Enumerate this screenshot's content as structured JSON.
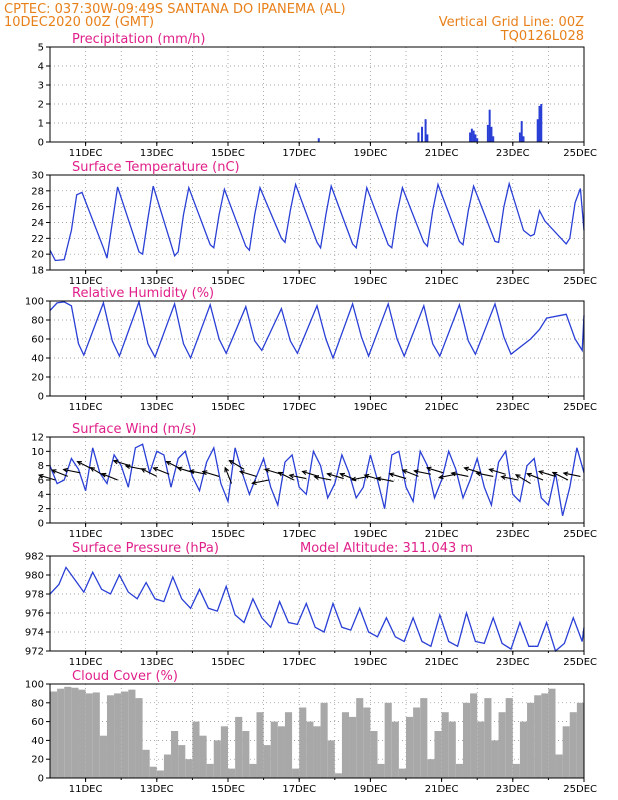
{
  "header": {
    "line1_left": "CPTEC:  037:30W-09:49S   SANTANA DO IPANEMA (AL)",
    "line2_left": "10DEC2020 00Z (GMT)",
    "line2_right": "Vertical Grid Line: 00Z",
    "line3_right": "TQ0126L028"
  },
  "colors": {
    "header": "#e8801a",
    "title": "#e0208a",
    "line": "#2a3fd6",
    "cloud": "#a8a8a8"
  },
  "chart_data": [
    {
      "type": "bar",
      "title": "Precipitation (mm/h)",
      "x_range": [
        10,
        25
      ],
      "ylim": [
        0,
        5
      ],
      "yticks": [
        0,
        1,
        2,
        3,
        4,
        5
      ],
      "xticks": [
        "11DEC",
        "13DEC",
        "15DEC",
        "17DEC",
        "19DEC",
        "21DEC",
        "23DEC",
        "25DEC"
      ],
      "x": [
        17.55,
        20.35,
        20.45,
        20.55,
        20.6,
        21.8,
        21.85,
        21.9,
        21.95,
        22.0,
        22.3,
        22.35,
        22.4,
        22.45,
        23.2,
        23.25,
        23.3,
        23.7,
        23.75,
        23.8
      ],
      "values": [
        0.2,
        0.5,
        0.8,
        1.2,
        0.4,
        0.5,
        0.7,
        0.6,
        0.4,
        0.2,
        0.9,
        1.7,
        0.8,
        0.3,
        0.5,
        1.1,
        0.3,
        1.2,
        1.9,
        2.0
      ]
    },
    {
      "type": "line",
      "title": "Surface Temperature (nC)",
      "x_range": [
        10,
        25
      ],
      "ylim": [
        18,
        30
      ],
      "yticks": [
        18,
        20,
        22,
        24,
        26,
        28,
        30
      ],
      "xticks": [
        "11DEC",
        "13DEC",
        "15DEC",
        "17DEC",
        "19DEC",
        "21DEC",
        "23DEC",
        "25DEC"
      ],
      "x": [
        10.0,
        10.15,
        10.4,
        10.6,
        10.75,
        10.9,
        11.5,
        11.6,
        11.75,
        11.9,
        12.5,
        12.6,
        12.75,
        12.9,
        13.5,
        13.6,
        13.75,
        13.9,
        14.5,
        14.6,
        14.75,
        14.9,
        15.5,
        15.6,
        15.75,
        15.9,
        16.5,
        16.6,
        16.75,
        16.9,
        17.5,
        17.6,
        17.75,
        17.9,
        18.5,
        18.6,
        18.75,
        18.9,
        19.5,
        19.6,
        19.75,
        19.9,
        20.5,
        20.6,
        20.75,
        20.9,
        21.5,
        21.6,
        21.75,
        21.9,
        22.5,
        22.6,
        22.75,
        22.9,
        23.3,
        23.5,
        23.6,
        23.75,
        23.9,
        24.5,
        24.6,
        24.75,
        24.9,
        25.0
      ],
      "values": [
        20.5,
        19.2,
        19.3,
        23.0,
        27.5,
        27.8,
        20.8,
        19.5,
        24.0,
        28.5,
        20.3,
        20.0,
        24.5,
        28.6,
        19.8,
        20.3,
        25.0,
        28.4,
        21.2,
        20.8,
        25.0,
        28.2,
        21.0,
        20.5,
        25.0,
        28.4,
        22.0,
        21.5,
        25.5,
        28.8,
        21.5,
        20.8,
        25.0,
        28.6,
        21.3,
        20.8,
        24.5,
        28.4,
        21.2,
        20.8,
        25.2,
        28.4,
        21.5,
        21.0,
        25.5,
        28.8,
        21.6,
        21.2,
        25.5,
        28.6,
        21.6,
        21.5,
        26.0,
        28.9,
        23.0,
        22.3,
        22.5,
        25.5,
        24.2,
        21.3,
        22.0,
        26.5,
        28.3,
        23.0
      ]
    },
    {
      "type": "line",
      "title": "Relative Humidity (%)",
      "x_range": [
        10,
        25
      ],
      "ylim": [
        0,
        100
      ],
      "yticks": [
        0,
        20,
        40,
        60,
        80,
        100
      ],
      "xticks": [
        "11DEC",
        "13DEC",
        "15DEC",
        "17DEC",
        "19DEC",
        "21DEC",
        "23DEC",
        "25DEC"
      ],
      "x": [
        10.0,
        10.2,
        10.4,
        10.6,
        10.8,
        10.95,
        11.5,
        11.75,
        11.95,
        12.5,
        12.75,
        12.95,
        13.5,
        13.75,
        13.95,
        14.5,
        14.75,
        14.95,
        15.5,
        15.75,
        15.95,
        16.5,
        16.75,
        16.95,
        17.5,
        17.75,
        17.95,
        18.5,
        18.75,
        18.95,
        19.5,
        19.75,
        19.95,
        20.5,
        20.75,
        20.95,
        21.5,
        21.75,
        21.95,
        22.5,
        22.75,
        22.95,
        23.5,
        23.75,
        23.95,
        24.5,
        24.75,
        24.95,
        25.0
      ],
      "values": [
        90,
        98,
        99,
        95,
        55,
        43,
        98,
        58,
        42,
        99,
        55,
        41,
        97,
        55,
        40,
        96,
        60,
        45,
        94,
        58,
        48,
        92,
        58,
        45,
        95,
        60,
        40,
        97,
        62,
        42,
        97,
        60,
        42,
        95,
        55,
        42,
        96,
        58,
        44,
        97,
        62,
        44,
        60,
        70,
        82,
        86,
        60,
        48,
        85
      ]
    },
    {
      "type": "line",
      "title": "Surface Wind (m/s)",
      "x_range": [
        10,
        25
      ],
      "ylim": [
        0,
        12
      ],
      "yticks": [
        0,
        2,
        4,
        6,
        8,
        10,
        12
      ],
      "xticks": [
        "11DEC",
        "13DEC",
        "15DEC",
        "17DEC",
        "19DEC",
        "21DEC",
        "23DEC",
        "25DEC"
      ],
      "x": [
        10.0,
        10.2,
        10.4,
        10.6,
        10.8,
        11.0,
        11.2,
        11.4,
        11.6,
        11.8,
        12.0,
        12.2,
        12.4,
        12.6,
        12.8,
        13.0,
        13.2,
        13.4,
        13.6,
        13.8,
        14.0,
        14.2,
        14.4,
        14.6,
        14.8,
        15.0,
        15.2,
        15.4,
        15.6,
        15.8,
        16.0,
        16.2,
        16.4,
        16.6,
        16.8,
        17.0,
        17.2,
        17.4,
        17.6,
        17.8,
        18.0,
        18.2,
        18.4,
        18.6,
        18.8,
        19.0,
        19.2,
        19.4,
        19.6,
        19.8,
        20.0,
        20.2,
        20.4,
        20.6,
        20.8,
        21.0,
        21.2,
        21.4,
        21.6,
        21.8,
        22.0,
        22.2,
        22.4,
        22.6,
        22.8,
        23.0,
        23.2,
        23.4,
        23.6,
        23.8,
        24.0,
        24.2,
        24.4,
        24.6,
        24.8,
        25.0
      ],
      "values": [
        8.0,
        5.5,
        6.0,
        9.0,
        7.5,
        4.5,
        10.5,
        7.0,
        5.5,
        9.5,
        8.0,
        5.0,
        10.5,
        11.0,
        7.0,
        10.0,
        9.5,
        5.0,
        9.0,
        10.0,
        6.5,
        4.5,
        8.5,
        10.5,
        5.5,
        3.0,
        10.5,
        7.0,
        4.0,
        6.5,
        9.0,
        5.0,
        2.5,
        8.5,
        9.5,
        5.0,
        4.0,
        10.0,
        8.0,
        3.5,
        5.5,
        9.5,
        7.0,
        3.5,
        5.0,
        9.5,
        6.0,
        2.0,
        9.5,
        10.0,
        5.0,
        3.0,
        10.0,
        8.0,
        3.5,
        6.0,
        10.0,
        7.5,
        3.5,
        6.0,
        9.0,
        5.0,
        2.5,
        8.5,
        10.0,
        4.0,
        3.0,
        8.0,
        9.0,
        3.5,
        2.5,
        7.0,
        1.0,
        5.0,
        10.5,
        7.0
      ],
      "arrows_x": [
        10.15,
        10.5,
        10.85,
        11.2,
        11.55,
        11.9,
        12.25,
        12.6,
        13.0,
        13.35,
        13.7,
        14.05,
        14.4,
        14.75,
        15.1,
        15.45,
        15.8,
        16.15,
        16.5,
        16.85,
        17.2,
        17.55,
        17.9,
        18.25,
        18.6,
        18.95,
        19.3,
        19.65,
        20.0,
        20.35,
        20.7,
        21.05,
        21.4,
        21.75,
        22.1,
        22.45,
        22.8,
        23.15,
        23.5,
        23.85,
        24.2,
        24.55,
        24.9
      ],
      "arrows_y": [
        6.0,
        6.5,
        7.0,
        7.5,
        6.5,
        6.0,
        8.0,
        7.5,
        6.5,
        6.8,
        7.5,
        7.0,
        6.8,
        6.5,
        5.5,
        7.5,
        6.5,
        6.0,
        6.8,
        6.0,
        6.2,
        6.5,
        6.0,
        6.2,
        6.0,
        6.5,
        6.0,
        5.8,
        6.2,
        6.5,
        6.8,
        7.0,
        6.8,
        6.5,
        7.0,
        6.5,
        6.8,
        6.0,
        5.5,
        6.0,
        6.5,
        6.0,
        6.5
      ],
      "arrows_u": [
        -1,
        -1,
        -1,
        -1,
        -1,
        -1,
        -1,
        -1,
        -1,
        -1,
        -1,
        -1,
        -1,
        -1,
        -0.4,
        -1,
        -1,
        -1,
        -1,
        -1,
        -1,
        -1,
        -1,
        -1,
        -1,
        -1,
        -1,
        -1,
        -1,
        -1,
        -1,
        -1,
        -1,
        -1,
        -1,
        -1,
        -1,
        -1,
        -1,
        -1,
        -1,
        -1,
        -1
      ],
      "arrows_v": [
        0.3,
        0.4,
        0.2,
        0.5,
        0.6,
        0.4,
        0.3,
        0.2,
        0.5,
        0.4,
        0.5,
        0.3,
        0.2,
        0.3,
        1.0,
        0.6,
        0.3,
        -0.2,
        0.3,
        0.5,
        0.2,
        0.3,
        0.2,
        0.3,
        0.4,
        -0.2,
        0.3,
        0.2,
        0.3,
        0.4,
        0.2,
        0.3,
        -0.2,
        0.2,
        0.3,
        0.2,
        0.3,
        0.2,
        0.6,
        0.4,
        0.3,
        0.5,
        0.2
      ]
    },
    {
      "type": "line",
      "title": "Surface Pressure (hPa)",
      "subtitle": "Model Altitude: 311.043 m",
      "x_range": [
        10,
        25
      ],
      "ylim": [
        972,
        982
      ],
      "yticks": [
        972,
        974,
        976,
        978,
        980,
        982
      ],
      "xticks": [
        "11DEC",
        "13DEC",
        "15DEC",
        "17DEC",
        "19DEC",
        "21DEC",
        "23DEC",
        "25DEC"
      ],
      "x": [
        10.0,
        10.25,
        10.45,
        10.7,
        10.95,
        11.2,
        11.45,
        11.7,
        11.95,
        12.2,
        12.45,
        12.7,
        12.95,
        13.2,
        13.45,
        13.7,
        13.95,
        14.2,
        14.45,
        14.7,
        14.95,
        15.2,
        15.45,
        15.7,
        15.95,
        16.2,
        16.45,
        16.7,
        16.95,
        17.2,
        17.45,
        17.7,
        17.95,
        18.2,
        18.45,
        18.7,
        18.95,
        19.2,
        19.45,
        19.7,
        19.95,
        20.2,
        20.45,
        20.7,
        20.95,
        21.2,
        21.45,
        21.7,
        21.95,
        22.2,
        22.45,
        22.7,
        22.95,
        23.2,
        23.45,
        23.7,
        23.95,
        24.2,
        24.45,
        24.7,
        24.95,
        25.0
      ],
      "values": [
        978.0,
        979.0,
        980.8,
        979.5,
        978.2,
        980.3,
        978.5,
        978.0,
        980.0,
        978.2,
        977.5,
        979.2,
        977.5,
        977.2,
        979.8,
        977.5,
        976.5,
        978.5,
        976.5,
        976.2,
        978.8,
        975.8,
        975.0,
        977.5,
        975.5,
        974.5,
        977.2,
        975.0,
        974.8,
        977.0,
        974.5,
        974.0,
        977.0,
        974.5,
        974.2,
        976.5,
        974.0,
        973.5,
        975.5,
        973.5,
        973.0,
        975.5,
        973.0,
        972.5,
        975.8,
        973.0,
        972.5,
        976.0,
        973.0,
        972.8,
        975.5,
        972.8,
        972.2,
        975.0,
        972.5,
        972.5,
        975.0,
        972.0,
        972.8,
        975.5,
        973.0,
        974.5
      ]
    },
    {
      "type": "bar",
      "title": "Cloud Cover (%)",
      "x_range": [
        10,
        25
      ],
      "ylim": [
        0,
        100
      ],
      "yticks": [
        0,
        20,
        40,
        60,
        80,
        100
      ],
      "xticks": [
        "11DEC",
        "13DEC",
        "15DEC",
        "17DEC",
        "19DEC",
        "21DEC",
        "23DEC",
        "25DEC"
      ],
      "x": [
        10.1,
        10.3,
        10.5,
        10.7,
        10.9,
        11.1,
        11.3,
        11.5,
        11.7,
        11.9,
        12.1,
        12.3,
        12.5,
        12.7,
        12.9,
        13.1,
        13.3,
        13.5,
        13.7,
        13.9,
        14.1,
        14.3,
        14.5,
        14.7,
        14.9,
        15.1,
        15.3,
        15.5,
        15.7,
        15.9,
        16.1,
        16.3,
        16.5,
        16.7,
        16.9,
        17.1,
        17.3,
        17.5,
        17.7,
        17.9,
        18.1,
        18.3,
        18.5,
        18.7,
        18.9,
        19.1,
        19.3,
        19.5,
        19.7,
        19.9,
        20.1,
        20.3,
        20.5,
        20.7,
        20.9,
        21.1,
        21.3,
        21.5,
        21.7,
        21.9,
        22.1,
        22.3,
        22.5,
        22.7,
        22.9,
        23.1,
        23.3,
        23.5,
        23.7,
        23.9,
        24.1,
        24.3,
        24.5,
        24.7,
        24.9
      ],
      "values": [
        92,
        95,
        97,
        96,
        94,
        90,
        91,
        45,
        88,
        90,
        92,
        94,
        85,
        30,
        12,
        8,
        25,
        50,
        35,
        20,
        60,
        45,
        15,
        40,
        55,
        10,
        65,
        50,
        15,
        70,
        35,
        60,
        55,
        70,
        10,
        75,
        60,
        55,
        80,
        40,
        5,
        70,
        65,
        85,
        75,
        50,
        15,
        80,
        60,
        10,
        65,
        75,
        85,
        20,
        50,
        70,
        60,
        15,
        80,
        90,
        60,
        85,
        40,
        70,
        85,
        15,
        60,
        80,
        88,
        90,
        95,
        25,
        55,
        70,
        80
      ]
    }
  ]
}
